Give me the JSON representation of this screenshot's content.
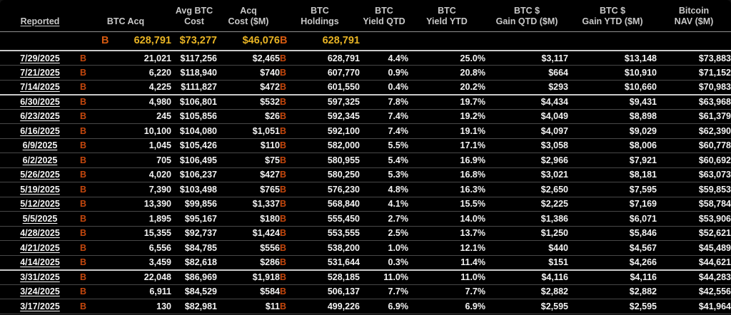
{
  "colors": {
    "background": "#000000",
    "row_text": "#f4f4f4",
    "header_text": "#c9c9c9",
    "orange": "#c4470d",
    "orange_bright": "#d65a10",
    "gold": "#e9b424",
    "separator": "#484848",
    "separator_bright": "#c9c9c9",
    "header_rule": "#8f8f8f"
  },
  "icons": {
    "bitcoin": "B"
  },
  "header": {
    "columns": [
      {
        "key": "reported",
        "line1": "",
        "line2": "Reported"
      },
      {
        "key": "btc_acq",
        "line1": "",
        "line2": "BTC Acq"
      },
      {
        "key": "avg_btc_cost",
        "line1": "Avg BTC",
        "line2": "Cost"
      },
      {
        "key": "acq_cost",
        "line1": "Acq",
        "line2": "Cost ($M)"
      },
      {
        "key": "btc_holdings",
        "line1": "BTC",
        "line2": "Holdings"
      },
      {
        "key": "yield_qtd",
        "line1": "BTC",
        "line2": "Yield QTD"
      },
      {
        "key": "yield_ytd",
        "line1": "BTC",
        "line2": "Yield YTD"
      },
      {
        "key": "gain_qtd",
        "line1": "BTC $",
        "line2": "Gain QTD ($M)"
      },
      {
        "key": "gain_ytd",
        "line1": "BTC $",
        "line2": "Gain YTD ($M)"
      },
      {
        "key": "nav",
        "line1": "Bitcoin",
        "line2": "NAV ($M)"
      }
    ]
  },
  "totals": {
    "btc_acq": "628,791",
    "avg_btc_cost": "$73,277",
    "acq_cost": "$46,076",
    "btc_holdings": "628,791"
  },
  "rows": [
    {
      "reported": "7/29/2025",
      "btc_acq": "21,021",
      "avg_btc_cost": "$117,256",
      "acq_cost": "$2,465",
      "btc_holdings": "628,791",
      "yield_qtd": "4.4%",
      "yield_ytd": "25.0%",
      "gain_qtd": "$3,117",
      "gain_ytd": "$13,148",
      "nav": "$73,883",
      "quarter_divider": false
    },
    {
      "reported": "7/21/2025",
      "btc_acq": "6,220",
      "avg_btc_cost": "$118,940",
      "acq_cost": "$740",
      "btc_holdings": "607,770",
      "yield_qtd": "0.9%",
      "yield_ytd": "20.8%",
      "gain_qtd": "$664",
      "gain_ytd": "$10,910",
      "nav": "$71,152",
      "quarter_divider": false
    },
    {
      "reported": "7/14/2025",
      "btc_acq": "4,225",
      "avg_btc_cost": "$111,827",
      "acq_cost": "$472",
      "btc_holdings": "601,550",
      "yield_qtd": "0.4%",
      "yield_ytd": "20.2%",
      "gain_qtd": "$293",
      "gain_ytd": "$10,660",
      "nav": "$70,983",
      "quarter_divider": false
    },
    {
      "reported": "6/30/2025",
      "btc_acq": "4,980",
      "avg_btc_cost": "$106,801",
      "acq_cost": "$532",
      "btc_holdings": "597,325",
      "yield_qtd": "7.8%",
      "yield_ytd": "19.7%",
      "gain_qtd": "$4,434",
      "gain_ytd": "$9,431",
      "nav": "$63,968",
      "quarter_divider": true
    },
    {
      "reported": "6/23/2025",
      "btc_acq": "245",
      "avg_btc_cost": "$105,856",
      "acq_cost": "$26",
      "btc_holdings": "592,345",
      "yield_qtd": "7.4%",
      "yield_ytd": "19.2%",
      "gain_qtd": "$4,049",
      "gain_ytd": "$8,898",
      "nav": "$61,379",
      "quarter_divider": false
    },
    {
      "reported": "6/16/2025",
      "btc_acq": "10,100",
      "avg_btc_cost": "$104,080",
      "acq_cost": "$1,051",
      "btc_holdings": "592,100",
      "yield_qtd": "7.4%",
      "yield_ytd": "19.1%",
      "gain_qtd": "$4,097",
      "gain_ytd": "$9,029",
      "nav": "$62,390",
      "quarter_divider": false
    },
    {
      "reported": "6/9/2025",
      "btc_acq": "1,045",
      "avg_btc_cost": "$105,426",
      "acq_cost": "$110",
      "btc_holdings": "582,000",
      "yield_qtd": "5.5%",
      "yield_ytd": "17.1%",
      "gain_qtd": "$3,058",
      "gain_ytd": "$8,006",
      "nav": "$60,778",
      "quarter_divider": false
    },
    {
      "reported": "6/2/2025",
      "btc_acq": "705",
      "avg_btc_cost": "$106,495",
      "acq_cost": "$75",
      "btc_holdings": "580,955",
      "yield_qtd": "5.4%",
      "yield_ytd": "16.9%",
      "gain_qtd": "$2,966",
      "gain_ytd": "$7,921",
      "nav": "$60,692",
      "quarter_divider": false
    },
    {
      "reported": "5/26/2025",
      "btc_acq": "4,020",
      "avg_btc_cost": "$106,237",
      "acq_cost": "$427",
      "btc_holdings": "580,250",
      "yield_qtd": "5.3%",
      "yield_ytd": "16.8%",
      "gain_qtd": "$3,021",
      "gain_ytd": "$8,181",
      "nav": "$63,073",
      "quarter_divider": false
    },
    {
      "reported": "5/19/2025",
      "btc_acq": "7,390",
      "avg_btc_cost": "$103,498",
      "acq_cost": "$765",
      "btc_holdings": "576,230",
      "yield_qtd": "4.8%",
      "yield_ytd": "16.3%",
      "gain_qtd": "$2,650",
      "gain_ytd": "$7,595",
      "nav": "$59,853",
      "quarter_divider": false
    },
    {
      "reported": "5/12/2025",
      "btc_acq": "13,390",
      "avg_btc_cost": "$99,856",
      "acq_cost": "$1,337",
      "btc_holdings": "568,840",
      "yield_qtd": "4.1%",
      "yield_ytd": "15.5%",
      "gain_qtd": "$2,225",
      "gain_ytd": "$7,169",
      "nav": "$58,784",
      "quarter_divider": false
    },
    {
      "reported": "5/5/2025",
      "btc_acq": "1,895",
      "avg_btc_cost": "$95,167",
      "acq_cost": "$180",
      "btc_holdings": "555,450",
      "yield_qtd": "2.7%",
      "yield_ytd": "14.0%",
      "gain_qtd": "$1,386",
      "gain_ytd": "$6,071",
      "nav": "$53,906",
      "quarter_divider": false
    },
    {
      "reported": "4/28/2025",
      "btc_acq": "15,355",
      "avg_btc_cost": "$92,737",
      "acq_cost": "$1,424",
      "btc_holdings": "553,555",
      "yield_qtd": "2.5%",
      "yield_ytd": "13.7%",
      "gain_qtd": "$1,250",
      "gain_ytd": "$5,846",
      "nav": "$52,621",
      "quarter_divider": false
    },
    {
      "reported": "4/21/2025",
      "btc_acq": "6,556",
      "avg_btc_cost": "$84,785",
      "acq_cost": "$556",
      "btc_holdings": "538,200",
      "yield_qtd": "1.0%",
      "yield_ytd": "12.1%",
      "gain_qtd": "$440",
      "gain_ytd": "$4,567",
      "nav": "$45,489",
      "quarter_divider": false
    },
    {
      "reported": "4/14/2025",
      "btc_acq": "3,459",
      "avg_btc_cost": "$82,618",
      "acq_cost": "$286",
      "btc_holdings": "531,644",
      "yield_qtd": "0.3%",
      "yield_ytd": "11.4%",
      "gain_qtd": "$151",
      "gain_ytd": "$4,266",
      "nav": "$44,621",
      "quarter_divider": false
    },
    {
      "reported": "3/31/2025",
      "btc_acq": "22,048",
      "avg_btc_cost": "$86,969",
      "acq_cost": "$1,918",
      "btc_holdings": "528,185",
      "yield_qtd": "11.0%",
      "yield_ytd": "11.0%",
      "gain_qtd": "$4,116",
      "gain_ytd": "$4,116",
      "nav": "$44,283",
      "quarter_divider": true
    },
    {
      "reported": "3/24/2025",
      "btc_acq": "6,911",
      "avg_btc_cost": "$84,529",
      "acq_cost": "$584",
      "btc_holdings": "506,137",
      "yield_qtd": "7.7%",
      "yield_ytd": "7.7%",
      "gain_qtd": "$2,882",
      "gain_ytd": "$2,882",
      "nav": "$42,556",
      "quarter_divider": false
    },
    {
      "reported": "3/17/2025",
      "btc_acq": "130",
      "avg_btc_cost": "$82,981",
      "acq_cost": "$11",
      "btc_holdings": "499,226",
      "yield_qtd": "6.9%",
      "yield_ytd": "6.9%",
      "gain_qtd": "$2,595",
      "gain_ytd": "$2,595",
      "nav": "$41,964",
      "quarter_divider": false
    }
  ]
}
